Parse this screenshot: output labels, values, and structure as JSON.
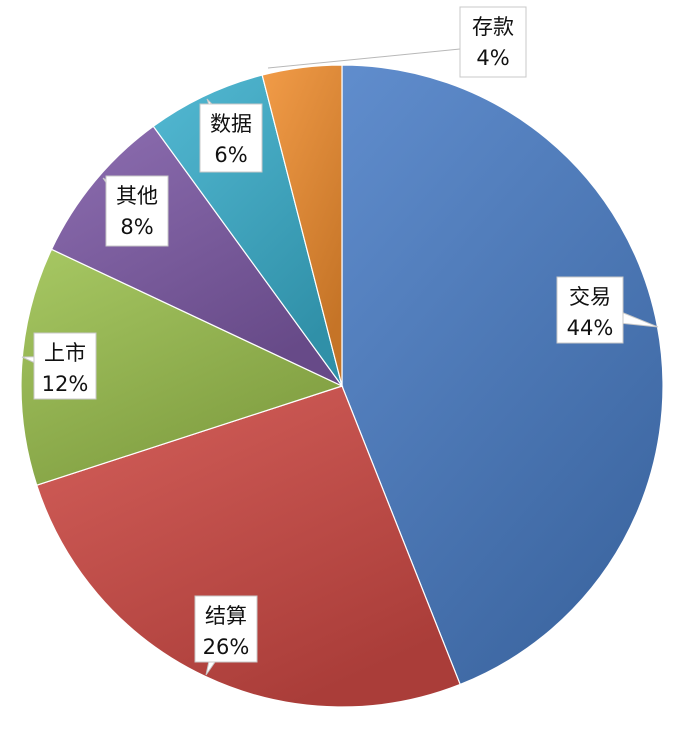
{
  "chart_data": {
    "type": "pie",
    "categories": [
      "交易",
      "结算",
      "上市",
      "其他",
      "数据",
      "存款"
    ],
    "values": [
      44,
      26,
      12,
      8,
      6,
      4
    ],
    "percent_labels": [
      "44%",
      "26%",
      "12%",
      "8%",
      "6%",
      "4%"
    ],
    "colors": [
      "#4a7ec6",
      "#cf4a45",
      "#9bc04e",
      "#7d5aa6",
      "#3bb0cd",
      "#f08e2f"
    ],
    "start_angle_deg": 0,
    "direction": "clockwise",
    "title": "",
    "legend": "none"
  }
}
